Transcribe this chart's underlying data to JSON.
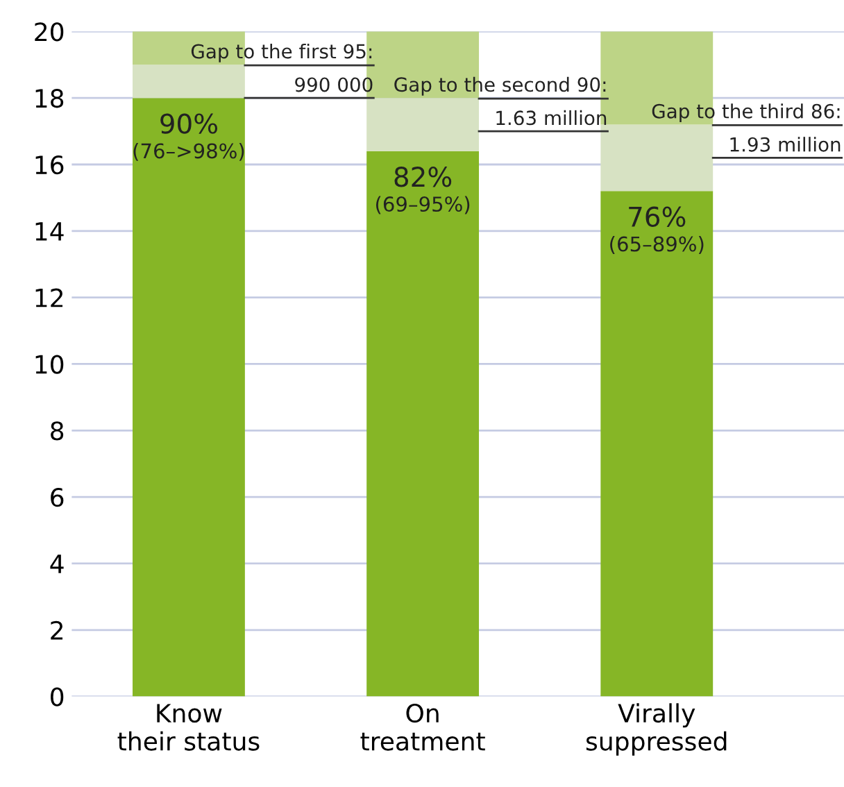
{
  "chart_data": {
    "type": "bar",
    "stacked": true,
    "categories": [
      "Know\ntheir status",
      "On\ntreatment",
      "Virally\nsuppressed"
    ],
    "series": [
      {
        "color": "#86b626",
        "values": [
          18.0,
          16.4,
          15.2
        ]
      },
      {
        "color": "#d7e2c3",
        "values": [
          1.0,
          1.6,
          2.0
        ]
      },
      {
        "color": "#bdd486",
        "values": [
          1.0,
          2.0,
          2.8
        ]
      }
    ],
    "ylim": [
      0,
      20
    ],
    "yticks": [
      0,
      2,
      4,
      6,
      8,
      10,
      12,
      14,
      16,
      18,
      20
    ],
    "grid": "y",
    "legend": false,
    "annotations": [
      {
        "text": "90%",
        "x": "Know\ntheir status",
        "y": 18.0
      },
      {
        "text": "(76–>98%)",
        "x": "Know\ntheir status",
        "y": 18.0
      },
      {
        "text": "82%",
        "x": "On\ntreatment",
        "y": 16.4
      },
      {
        "text": "(69–95%)",
        "x": "On\ntreatment",
        "y": 16.4
      },
      {
        "text": "76%",
        "x": "Virally\nsuppressed",
        "y": 15.2
      },
      {
        "text": "(65–89%)",
        "x": "Virally\nsuppressed",
        "y": 15.2
      },
      {
        "text": "Gap to the first 95:\n990 000",
        "x": "Know\ntheir status",
        "y": 19.0
      },
      {
        "text": "Gap to the second 90:\n1.63 million",
        "x": "On\ntreatment",
        "y": 18.0
      },
      {
        "text": "Gap to the third 86:\n1.93 million",
        "x": "Virally\nsuppressed",
        "y": 17.2
      }
    ]
  }
}
